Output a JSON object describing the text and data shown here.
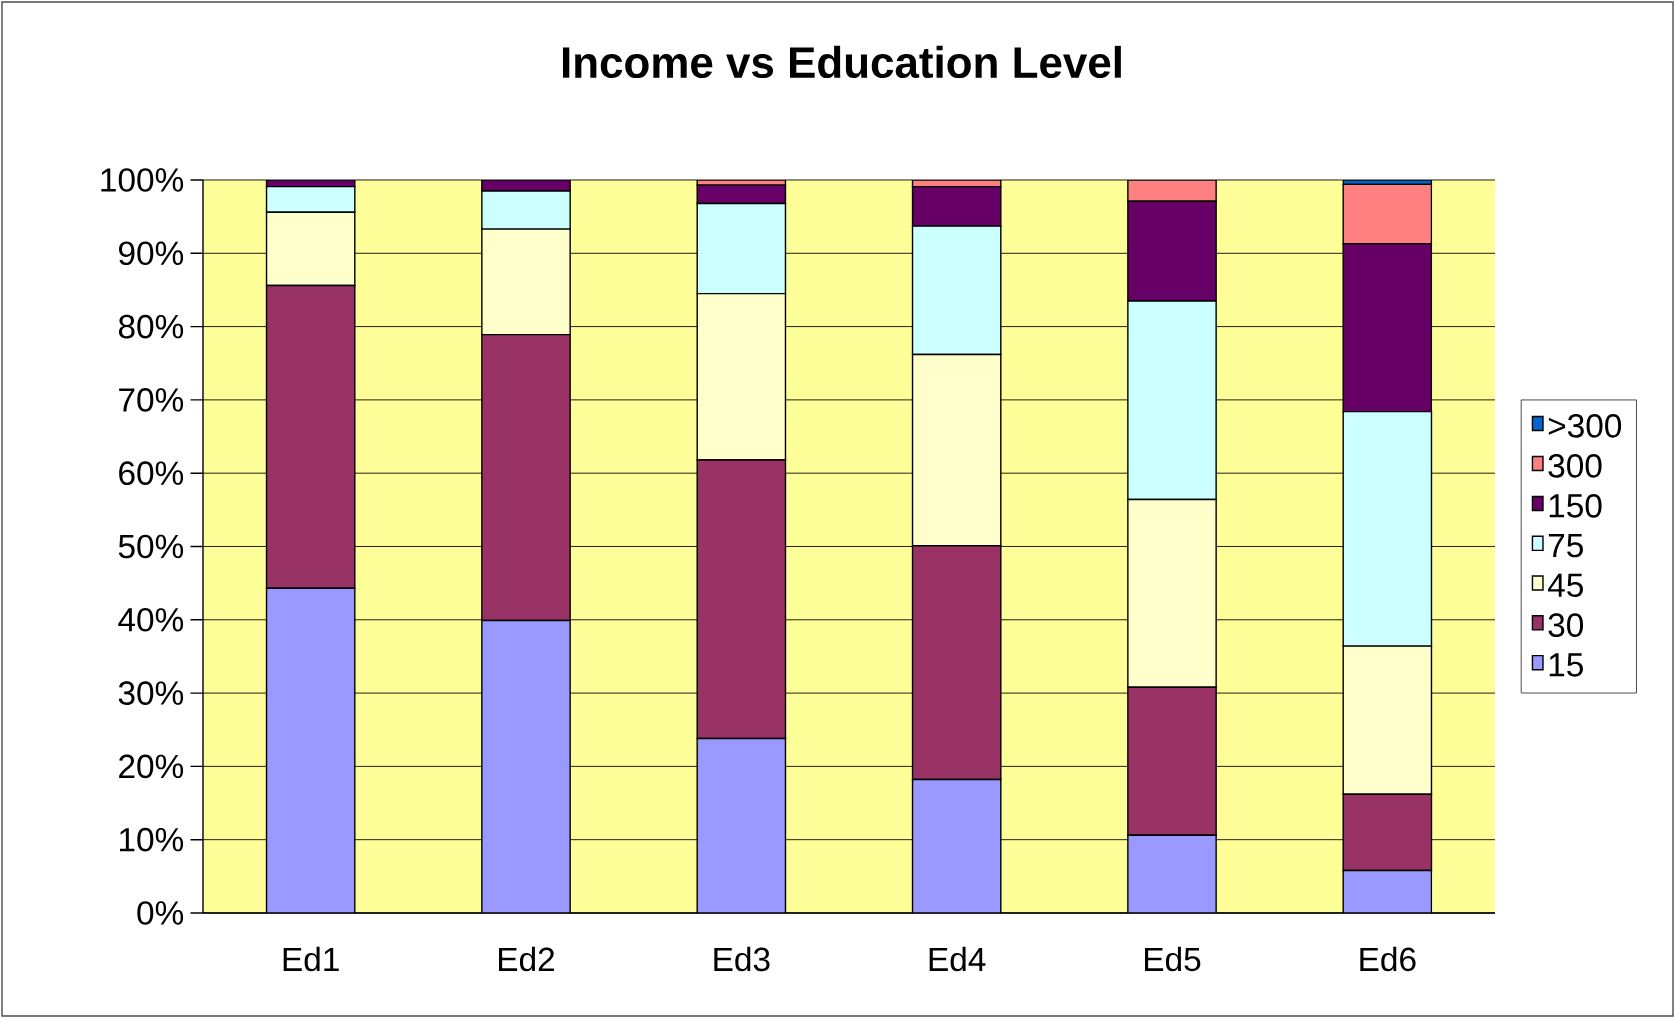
{
  "chart_data": {
    "type": "bar",
    "title": "Income vs Education Level",
    "stacked": true,
    "grid": "y",
    "legend": "right",
    "categories": [
      "Ed1",
      "Ed2",
      "Ed3",
      "Ed4",
      "Ed5",
      "Ed6"
    ],
    "ylim": [
      0,
      100
    ],
    "yticks": [
      {
        "value": 0,
        "label": "0%"
      },
      {
        "value": 10,
        "label": "10%"
      },
      {
        "value": 20,
        "label": "20%"
      },
      {
        "value": 30,
        "label": "30%"
      },
      {
        "value": 40,
        "label": "40%"
      },
      {
        "value": 50,
        "label": "50%"
      },
      {
        "value": 60,
        "label": "60%"
      },
      {
        "value": 70,
        "label": "70%"
      },
      {
        "value": 80,
        "label": "80%"
      },
      {
        "value": 90,
        "label": "90%"
      },
      {
        "value": 100,
        "label": "100%"
      }
    ],
    "series": [
      {
        "name": "15",
        "color": "#9999ff",
        "values": [
          44.3,
          39.9,
          23.8,
          18.2,
          10.6,
          5.8
        ]
      },
      {
        "name": "30",
        "color": "#993366",
        "values": [
          41.3,
          39.0,
          38.0,
          31.9,
          20.2,
          10.4
        ]
      },
      {
        "name": "45",
        "color": "#ffffcc",
        "values": [
          10.0,
          14.4,
          22.7,
          26.1,
          25.6,
          20.2
        ]
      },
      {
        "name": "75",
        "color": "#ccffff",
        "values": [
          3.5,
          5.2,
          12.3,
          17.5,
          27.1,
          32.0
        ]
      },
      {
        "name": "150",
        "color": "#660066",
        "values": [
          0.9,
          1.5,
          2.5,
          5.4,
          13.6,
          22.9
        ]
      },
      {
        "name": "300",
        "color": "#ff8080",
        "values": [
          null,
          null,
          0.7,
          0.9,
          2.9,
          8.1
        ]
      },
      {
        "name": ">300",
        "color": "#0066cc",
        "values": [
          null,
          null,
          null,
          null,
          null,
          0.6
        ]
      }
    ]
  }
}
